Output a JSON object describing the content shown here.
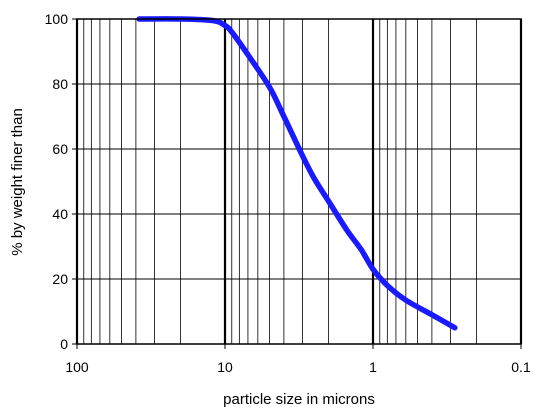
{
  "chart_data": {
    "type": "line",
    "title": "",
    "xlabel": "particle size in microns",
    "ylabel": "% by weight finer than",
    "x_scale": "log",
    "x_reversed": true,
    "xlim": [
      100,
      0.1
    ],
    "ylim": [
      0,
      100
    ],
    "x_ticks": [
      100,
      10,
      1,
      0.1
    ],
    "x_tick_labels": [
      "100",
      "10",
      "1",
      "0.1"
    ],
    "y_ticks": [
      0,
      20,
      40,
      60,
      80,
      100
    ],
    "y_tick_labels": [
      "0",
      "20",
      "40",
      "60",
      "80",
      "100"
    ],
    "grid": true,
    "series": [
      {
        "color": "#1a1aff",
        "x": [
          38,
          20,
          12,
          10,
          9,
          7,
          5,
          4,
          3,
          2.5,
          2,
          1.5,
          1.2,
          1,
          0.8,
          0.6,
          0.4,
          0.28
        ],
        "y": [
          100,
          100,
          99.5,
          98,
          96,
          89,
          79,
          70,
          58,
          51,
          44,
          35,
          29,
          23,
          18,
          13.5,
          9,
          5
        ]
      }
    ]
  }
}
